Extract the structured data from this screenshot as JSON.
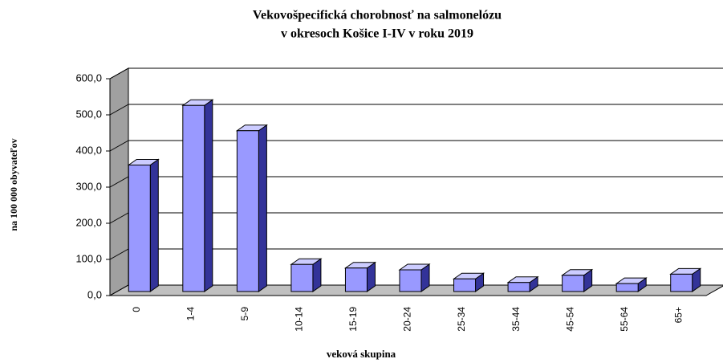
{
  "chart_data": {
    "type": "bar3d",
    "title": [
      "Vekovošpecifická chorobnosť na salmonelózu",
      "v okresoch Košice I-IV v roku 2019"
    ],
    "x_label": "veková skupina",
    "y_label": "na 100 000 obyvateľov",
    "categories": [
      "0",
      "1-4",
      "5-9",
      "10-14",
      "15-19",
      "20-24",
      "25-34",
      "35-44",
      "45-54",
      "55-64",
      "65+"
    ],
    "values": [
      350,
      515,
      445,
      75,
      65,
      60,
      35,
      25,
      45,
      22,
      48
    ],
    "color": "#9999ff",
    "ylim": [
      0,
      600
    ],
    "yticks": [
      {
        "value": 0,
        "label": "0,0"
      },
      {
        "value": 100,
        "label": "100,0"
      },
      {
        "value": 200,
        "label": "200,0"
      },
      {
        "value": 300,
        "label": "300,0"
      },
      {
        "value": 400,
        "label": "400,0"
      },
      {
        "value": 500,
        "label": "500,0"
      },
      {
        "value": 600,
        "label": "600,0"
      }
    ],
    "grid": true
  }
}
